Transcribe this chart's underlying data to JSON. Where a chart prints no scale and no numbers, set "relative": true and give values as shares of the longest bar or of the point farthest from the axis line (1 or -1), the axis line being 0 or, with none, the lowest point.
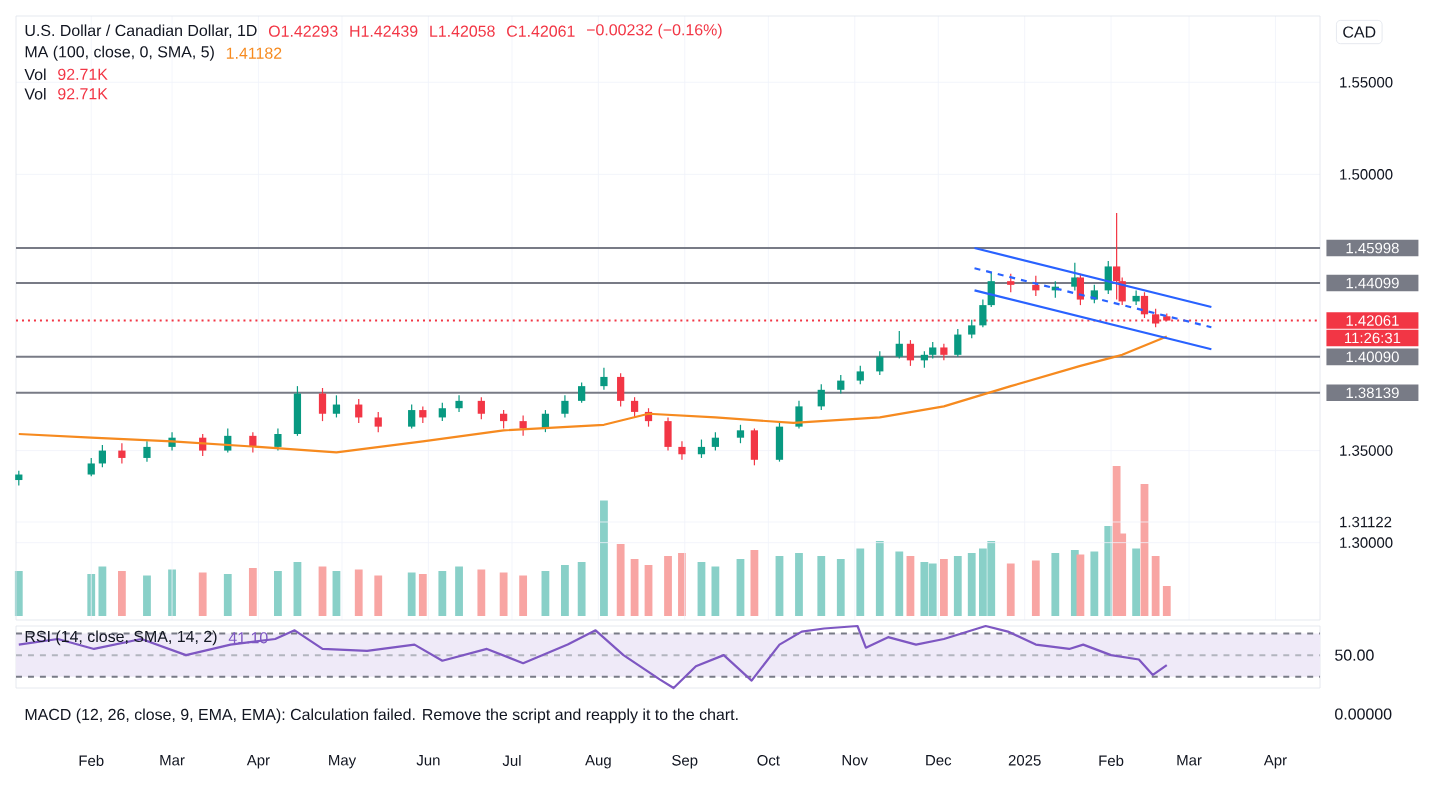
{
  "chart_data": [
    {
      "type": "candlestick",
      "title": "U.S. Dollar / Canadian Dollar, 1D",
      "x": [
        "2024-01-06",
        "2024-02-01",
        "2024-02-05",
        "2024-02-12",
        "2024-02-21",
        "2024-03-01",
        "2024-03-12",
        "2024-03-21",
        "2024-03-30",
        "2024-04-08",
        "2024-04-15",
        "2024-04-24",
        "2024-04-29",
        "2024-05-07",
        "2024-05-14",
        "2024-05-26",
        "2024-05-30",
        "2024-06-06",
        "2024-06-12",
        "2024-06-20",
        "2024-06-28",
        "2024-07-05",
        "2024-07-13",
        "2024-07-20",
        "2024-07-26",
        "2024-08-03",
        "2024-08-09",
        "2024-08-14",
        "2024-08-19",
        "2024-08-26",
        "2024-08-31",
        "2024-09-07",
        "2024-09-12",
        "2024-09-21",
        "2024-09-26",
        "2024-10-05",
        "2024-10-12",
        "2024-10-20",
        "2024-10-27",
        "2024-11-03",
        "2024-11-10",
        "2024-11-17",
        "2024-11-21",
        "2024-11-26",
        "2024-11-29",
        "2024-12-03",
        "2024-12-08",
        "2024-12-13",
        "2024-12-17",
        "2024-12-20",
        "2024-12-27",
        "2025-01-05",
        "2025-01-12",
        "2025-01-19",
        "2025-01-21",
        "2025-01-26",
        "2025-01-31",
        "2025-02-03",
        "2025-02-05",
        "2025-02-10",
        "2025-02-13",
        "2025-02-17",
        "2025-02-21"
      ],
      "ohlc": [
        [
          1.334,
          1.339,
          1.331,
          1.337
        ],
        [
          1.337,
          1.346,
          1.336,
          1.343
        ],
        [
          1.343,
          1.353,
          1.341,
          1.35
        ],
        [
          1.35,
          1.354,
          1.343,
          1.346
        ],
        [
          1.346,
          1.355,
          1.344,
          1.352
        ],
        [
          1.352,
          1.36,
          1.35,
          1.357
        ],
        [
          1.357,
          1.359,
          1.347,
          1.35
        ],
        [
          1.35,
          1.362,
          1.349,
          1.358
        ],
        [
          1.358,
          1.36,
          1.349,
          1.352
        ],
        [
          1.352,
          1.362,
          1.35,
          1.359
        ],
        [
          1.359,
          1.385,
          1.358,
          1.381
        ],
        [
          1.381,
          1.384,
          1.366,
          1.37
        ],
        [
          1.37,
          1.38,
          1.368,
          1.375
        ],
        [
          1.375,
          1.378,
          1.365,
          1.368
        ],
        [
          1.368,
          1.371,
          1.36,
          1.363
        ],
        [
          1.363,
          1.375,
          1.362,
          1.372
        ],
        [
          1.372,
          1.374,
          1.365,
          1.368
        ],
        [
          1.368,
          1.376,
          1.366,
          1.373
        ],
        [
          1.373,
          1.38,
          1.371,
          1.377
        ],
        [
          1.377,
          1.379,
          1.367,
          1.37
        ],
        [
          1.37,
          1.372,
          1.362,
          1.366
        ],
        [
          1.366,
          1.369,
          1.358,
          1.362
        ],
        [
          1.362,
          1.372,
          1.36,
          1.37
        ],
        [
          1.37,
          1.38,
          1.368,
          1.377
        ],
        [
          1.377,
          1.387,
          1.376,
          1.385
        ],
        [
          1.385,
          1.395,
          1.383,
          1.39
        ],
        [
          1.39,
          1.392,
          1.374,
          1.377
        ],
        [
          1.377,
          1.379,
          1.368,
          1.371
        ],
        [
          1.371,
          1.373,
          1.363,
          1.366
        ],
        [
          1.366,
          1.368,
          1.35,
          1.352
        ],
        [
          1.352,
          1.355,
          1.345,
          1.348
        ],
        [
          1.348,
          1.356,
          1.346,
          1.352
        ],
        [
          1.352,
          1.36,
          1.35,
          1.357
        ],
        [
          1.357,
          1.364,
          1.354,
          1.361
        ],
        [
          1.361,
          1.362,
          1.342,
          1.345
        ],
        [
          1.345,
          1.366,
          1.344,
          1.363
        ],
        [
          1.363,
          1.377,
          1.362,
          1.374
        ],
        [
          1.374,
          1.386,
          1.372,
          1.383
        ],
        [
          1.383,
          1.391,
          1.381,
          1.388
        ],
        [
          1.388,
          1.396,
          1.386,
          1.393
        ],
        [
          1.393,
          1.404,
          1.391,
          1.401
        ],
        [
          1.401,
          1.415,
          1.4,
          1.408
        ],
        [
          1.408,
          1.41,
          1.396,
          1.399
        ],
        [
          1.399,
          1.404,
          1.395,
          1.402
        ],
        [
          1.402,
          1.409,
          1.4,
          1.406
        ],
        [
          1.406,
          1.408,
          1.399,
          1.402
        ],
        [
          1.402,
          1.416,
          1.401,
          1.413
        ],
        [
          1.413,
          1.421,
          1.411,
          1.418
        ],
        [
          1.418,
          1.432,
          1.417,
          1.429
        ],
        [
          1.429,
          1.447,
          1.428,
          1.442
        ],
        [
          1.442,
          1.446,
          1.436,
          1.44
        ],
        [
          1.44,
          1.445,
          1.434,
          1.437
        ],
        [
          1.437,
          1.442,
          1.433,
          1.439
        ],
        [
          1.439,
          1.452,
          1.437,
          1.444
        ],
        [
          1.444,
          1.446,
          1.429,
          1.432
        ],
        [
          1.432,
          1.44,
          1.43,
          1.437
        ],
        [
          1.437,
          1.453,
          1.435,
          1.45
        ],
        [
          1.45,
          1.479,
          1.432,
          1.442
        ],
        [
          1.442,
          1.444,
          1.429,
          1.431
        ],
        [
          1.431,
          1.437,
          1.429,
          1.434
        ],
        [
          1.434,
          1.436,
          1.422,
          1.424
        ],
        [
          1.424,
          1.427,
          1.417,
          1.419
        ],
        [
          1.42293,
          1.42439,
          1.42058,
          1.42061
        ]
      ],
      "series": [
        {
          "type": "line",
          "color": "#f68a1f",
          "x": [
            "2024-01-06",
            "2024-02-01",
            "2024-03-01",
            "2024-04-01",
            "2024-04-29",
            "2024-05-30",
            "2024-06-28",
            "2024-08-03",
            "2024-08-19",
            "2024-09-12",
            "2024-10-10",
            "2024-11-10",
            "2024-12-03",
            "2024-12-27",
            "2025-01-21",
            "2025-02-05",
            "2025-02-21"
          ],
          "values": [
            1.359,
            1.357,
            1.355,
            1.352,
            1.349,
            1.355,
            1.361,
            1.364,
            1.37,
            1.368,
            1.365,
            1.368,
            1.374,
            1.385,
            1.396,
            1.402,
            1.412
          ]
        },
        {
          "type": "line",
          "color": "#2962ff",
          "x": [
            "2024-12-14",
            "2025-03-09"
          ],
          "values": [
            1.46,
            1.428
          ]
        },
        {
          "type": "line",
          "color": "#2962ff",
          "x": [
            "2024-12-14",
            "2025-03-09"
          ],
          "values": [
            1.437,
            1.405
          ]
        },
        {
          "type": "line",
          "color": "#2962ff",
          "line_style": "dashed",
          "x": [
            "2024-12-14",
            "2025-03-09"
          ],
          "values": [
            1.449,
            1.417
          ]
        }
      ],
      "xlim": [
        "2024-01-05",
        "2025-04-17"
      ],
      "ylim": [
        1.258,
        1.586
      ],
      "xticks": [
        {
          "value": "2024-02-01",
          "label": null
        },
        {
          "value": "2024-03-01",
          "label": null
        },
        {
          "value": "2024-04-01",
          "label": null
        },
        {
          "value": "2024-05-01",
          "label": null
        },
        {
          "value": "2024-06-01",
          "label": null
        },
        {
          "value": "2024-07-01",
          "label": null
        },
        {
          "value": "2024-08-01",
          "label": null
        },
        {
          "value": "2024-09-01",
          "label": null
        },
        {
          "value": "2024-10-01",
          "label": null
        },
        {
          "value": "2024-11-01",
          "label": null
        },
        {
          "value": "2024-12-01",
          "label": null
        },
        {
          "value": "2025-01-01",
          "label": null
        },
        {
          "value": "2025-02-01",
          "label": null
        },
        {
          "value": "2025-03-01",
          "label": null
        },
        {
          "value": "2025-04-01",
          "label": null
        }
      ],
      "yticks": [
        {
          "value": 1.3,
          "label": "1.30000"
        },
        {
          "value": 1.31122,
          "label": "1.31122"
        },
        {
          "value": 1.35,
          "label": "1.35000"
        },
        {
          "value": 1.5,
          "label": "1.50000"
        },
        {
          "value": 1.55,
          "label": "1.55000"
        }
      ],
      "ref_lines": [
        {
          "axis": "y",
          "value": 1.45998,
          "label": "1.45998",
          "color": "#787b86"
        },
        {
          "axis": "y",
          "value": 1.44099,
          "label": "1.44099",
          "color": "#787b86"
        },
        {
          "axis": "y",
          "value": 1.4009,
          "label": "1.40090",
          "color": "#787b86"
        },
        {
          "axis": "y",
          "value": 1.38139,
          "label": "1.38139",
          "color": "#787b86"
        },
        {
          "axis": "y",
          "value": 1.42061,
          "label": "1.42061",
          "color": "#f23645",
          "line_style": "dotted"
        }
      ],
      "annotations": [
        "O1.42293",
        "H1.42439",
        "L1.42058",
        "C1.42061",
        "−0.00232 (−0.16%)",
        "MA (100, close, 0, SMA, 5)",
        "1.41182",
        "Vol",
        "92.71K",
        "Vol",
        "92.71K",
        "CAD",
        "11:26:31"
      ],
      "grid": true,
      "tick_labels": "y"
    },
    {
      "type": "bar",
      "relative": true,
      "x": [
        "2024-01-06",
        "2024-02-01",
        "2024-02-05",
        "2024-02-12",
        "2024-02-21",
        "2024-03-01",
        "2024-03-12",
        "2024-03-21",
        "2024-03-30",
        "2024-04-08",
        "2024-04-15",
        "2024-04-24",
        "2024-04-29",
        "2024-05-07",
        "2024-05-14",
        "2024-05-26",
        "2024-05-30",
        "2024-06-06",
        "2024-06-12",
        "2024-06-20",
        "2024-06-28",
        "2024-07-05",
        "2024-07-13",
        "2024-07-20",
        "2024-07-26",
        "2024-08-03",
        "2024-08-09",
        "2024-08-14",
        "2024-08-19",
        "2024-08-26",
        "2024-08-31",
        "2024-09-07",
        "2024-09-12",
        "2024-09-21",
        "2024-09-26",
        "2024-10-05",
        "2024-10-12",
        "2024-10-20",
        "2024-10-27",
        "2024-11-03",
        "2024-11-10",
        "2024-11-17",
        "2024-11-21",
        "2024-11-26",
        "2024-11-29",
        "2024-12-03",
        "2024-12-08",
        "2024-12-13",
        "2024-12-17",
        "2024-12-20",
        "2024-12-27",
        "2025-01-05",
        "2025-01-12",
        "2025-01-19",
        "2025-01-21",
        "2025-01-26",
        "2025-01-31",
        "2025-02-03",
        "2025-02-05",
        "2025-02-10",
        "2025-02-13",
        "2025-02-17",
        "2025-02-21"
      ],
      "values": [
        0.3,
        0.28,
        0.33,
        0.3,
        0.27,
        0.31,
        0.29,
        0.28,
        0.32,
        0.3,
        0.36,
        0.33,
        0.3,
        0.31,
        0.27,
        0.29,
        0.28,
        0.3,
        0.33,
        0.31,
        0.29,
        0.27,
        0.3,
        0.34,
        0.36,
        0.77,
        0.48,
        0.38,
        0.34,
        0.4,
        0.42,
        0.36,
        0.33,
        0.38,
        0.44,
        0.4,
        0.42,
        0.4,
        0.38,
        0.45,
        0.5,
        0.43,
        0.4,
        0.36,
        0.35,
        0.38,
        0.4,
        0.42,
        0.45,
        0.5,
        0.35,
        0.37,
        0.42,
        0.44,
        0.41,
        0.43,
        0.6,
        1.0,
        0.55,
        0.45,
        0.88,
        0.4,
        0.2
      ],
      "colors": [
        "#89d0c8",
        "#89d0c8",
        "#89d0c8",
        "#f8a5a3",
        "#89d0c8",
        "#89d0c8",
        "#f8a5a3",
        "#89d0c8",
        "#f8a5a3",
        "#89d0c8",
        "#89d0c8",
        "#f8a5a3",
        "#89d0c8",
        "#f8a5a3",
        "#f8a5a3",
        "#89d0c8",
        "#f8a5a3",
        "#89d0c8",
        "#89d0c8",
        "#f8a5a3",
        "#f8a5a3",
        "#f8a5a3",
        "#89d0c8",
        "#89d0c8",
        "#89d0c8",
        "#89d0c8",
        "#f8a5a3",
        "#f8a5a3",
        "#f8a5a3",
        "#f8a5a3",
        "#f8a5a3",
        "#89d0c8",
        "#89d0c8",
        "#89d0c8",
        "#f8a5a3",
        "#89d0c8",
        "#89d0c8",
        "#89d0c8",
        "#89d0c8",
        "#89d0c8",
        "#89d0c8",
        "#89d0c8",
        "#f8a5a3",
        "#89d0c8",
        "#89d0c8",
        "#f8a5a3",
        "#89d0c8",
        "#89d0c8",
        "#89d0c8",
        "#89d0c8",
        "#f8a5a3",
        "#f8a5a3",
        "#89d0c8",
        "#89d0c8",
        "#f8a5a3",
        "#89d0c8",
        "#89d0c8",
        "#f8a5a3",
        "#f8a5a3",
        "#89d0c8",
        "#f8a5a3",
        "#f8a5a3",
        "#f8a5a3"
      ],
      "xlim": [
        "2024-01-05",
        "2025-04-17"
      ],
      "tick_labels": false
    },
    {
      "type": "line",
      "series": [
        {
          "color": "#7e57c2",
          "x": [
            "2024-01-06",
            "2024-01-20",
            "2024-02-02",
            "2024-02-19",
            "2024-03-06",
            "2024-03-22",
            "2024-04-07",
            "2024-04-14",
            "2024-04-24",
            "2024-05-10",
            "2024-05-27",
            "2024-06-06",
            "2024-06-22",
            "2024-07-05",
            "2024-07-21",
            "2024-07-31",
            "2024-08-10",
            "2024-08-23",
            "2024-08-28",
            "2024-09-05",
            "2024-09-15",
            "2024-09-25",
            "2024-10-05",
            "2024-10-13",
            "2024-10-21",
            "2024-11-02",
            "2024-11-05",
            "2024-11-13",
            "2024-11-23",
            "2024-12-03",
            "2024-12-18",
            "2024-12-26",
            "2025-01-05",
            "2025-01-17",
            "2025-01-22",
            "2025-02-01",
            "2025-02-11",
            "2025-02-16",
            "2025-02-21"
          ],
          "values": [
            0.7,
            0.79,
            0.63,
            0.79,
            0.53,
            0.7,
            0.79,
            0.93,
            0.63,
            0.6,
            0.7,
            0.44,
            0.63,
            0.4,
            0.7,
            0.93,
            0.53,
            0.14,
            0,
            0.35,
            0.53,
            0.12,
            0.7,
            0.91,
            0.96,
            1,
            0.65,
            0.82,
            0.7,
            0.79,
            1,
            0.91,
            0.7,
            0.63,
            0.7,
            0.53,
            0.46,
            0.21,
            0.37
          ]
        }
      ],
      "relative": true,
      "xlim": [
        "2024-01-05",
        "2025-04-17"
      ],
      "xticks": [
        {
          "value": "2024-02-01",
          "label": "Feb"
        },
        {
          "value": "2024-03-01",
          "label": "Mar"
        },
        {
          "value": "2024-04-01",
          "label": "Apr"
        },
        {
          "value": "2024-05-01",
          "label": "May"
        },
        {
          "value": "2024-06-01",
          "label": "Jun"
        },
        {
          "value": "2024-07-01",
          "label": "Jul"
        },
        {
          "value": "2024-08-01",
          "label": "Aug"
        },
        {
          "value": "2024-09-01",
          "label": "Sep"
        },
        {
          "value": "2024-10-01",
          "label": "Oct"
        },
        {
          "value": "2024-11-01",
          "label": "Nov"
        },
        {
          "value": "2024-12-01",
          "label": "Dec"
        },
        {
          "value": "2025-01-01",
          "label": "2025"
        },
        {
          "value": "2025-02-01",
          "label": "Feb"
        },
        {
          "value": "2025-03-01",
          "label": "Mar"
        },
        {
          "value": "2025-04-01",
          "label": "Apr"
        }
      ],
      "ref_lines": [
        {
          "axis": "y",
          "value": 0.88,
          "color": "#787b86",
          "line_style": "dashed"
        },
        {
          "axis": "y",
          "value": 0.53,
          "color": "#b2b5be",
          "line_style": "dashed"
        },
        {
          "axis": "y",
          "value": 0.18,
          "color": "#787b86",
          "line_style": "dashed"
        }
      ],
      "bands": [
        {
          "axis": "y",
          "from": 0.18,
          "to": 0.88,
          "color": "#efeaf8"
        }
      ],
      "annotations": [
        "RSI (14, close, SMA, 14, 2)",
        "41.10",
        "50.00",
        "MACD (12, 26, close, 9, EMA, EMA): Calculation failed. Remove the script and reapply it to the chart.",
        "0.00000"
      ],
      "tick_labels": "x"
    }
  ]
}
